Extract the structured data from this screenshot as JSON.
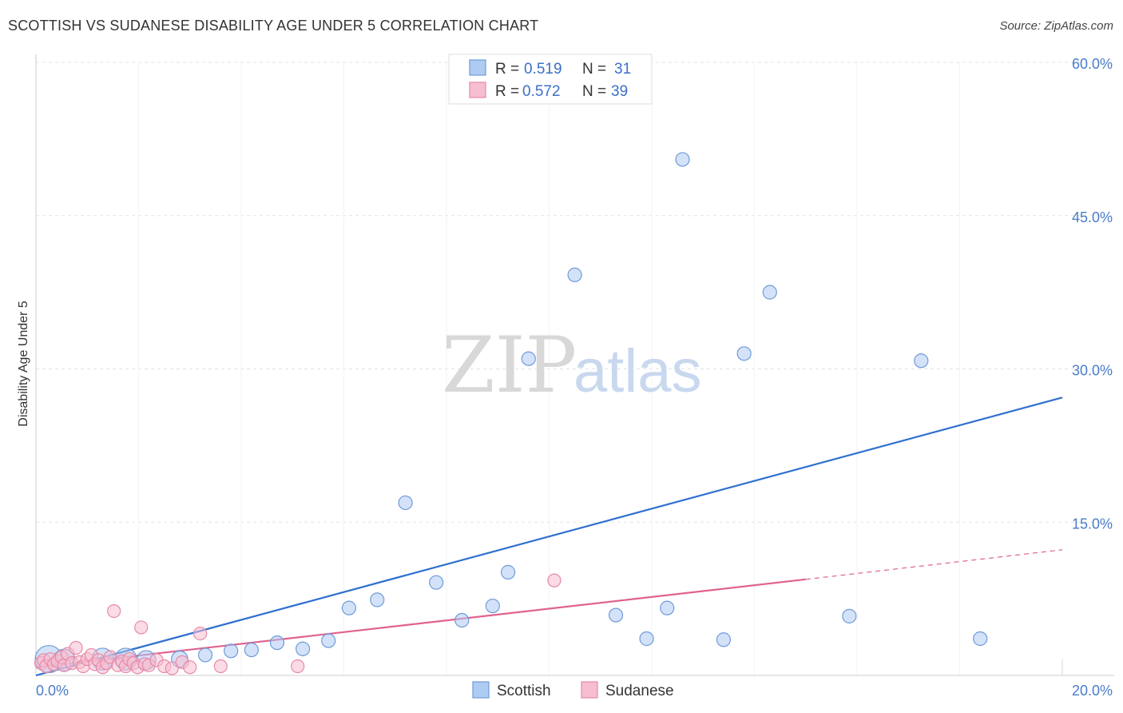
{
  "header": {
    "title": "SCOTTISH VS SUDANESE DISABILITY AGE UNDER 5 CORRELATION CHART",
    "source": "Source: ZipAtlas.com"
  },
  "watermark": {
    "zip": "ZIP",
    "atlas": "atlas"
  },
  "legend": {
    "rows": [
      {
        "r_label": "R =",
        "r_value": "0.519",
        "n_label": "N =",
        "n_value": "31"
      },
      {
        "r_label": "R =",
        "r_value": "0.572",
        "n_label": "N =",
        "n_value": "39"
      }
    ]
  },
  "colors": {
    "scottish_fill": "#aecbf2",
    "scottish_stroke": "#6f9bd8",
    "scottish_line": "#2f6fcf",
    "sudanese_fill": "#f7bdd0",
    "sudanese_stroke": "#e68aa8",
    "sudanese_line": "#e0628f",
    "grid": "#e3e3e3",
    "tick_text": "#4a7cc9"
  },
  "chart_data": {
    "type": "scatter",
    "title": "SCOTTISH VS SUDANESE DISABILITY AGE UNDER 5 CORRELATION CHART",
    "xlabel": "",
    "ylabel": "Disability Age Under 5",
    "xlim": [
      0,
      20
    ],
    "ylim": [
      0,
      60
    ],
    "x_tick_labels": [
      "0.0%",
      "20.0%"
    ],
    "y_ticks": [
      15,
      30,
      45,
      60
    ],
    "y_tick_labels": [
      "15.0%",
      "30.0%",
      "45.0%",
      "60.0%"
    ],
    "grid": true,
    "legend_position": "top-center",
    "series": [
      {
        "name": "Scottish",
        "r": 0.519,
        "n": 31,
        "points": [
          [
            0.25,
            1.6,
            2.0
          ],
          [
            0.55,
            1.5,
            1.6
          ],
          [
            1.3,
            1.6,
            1.6
          ],
          [
            1.75,
            1.6,
            1.6
          ],
          [
            2.15,
            1.5,
            1.4
          ],
          [
            2.8,
            1.6,
            1.2
          ],
          [
            3.3,
            2.0,
            1.0
          ],
          [
            3.8,
            2.4,
            1.0
          ],
          [
            4.2,
            2.5,
            1.0
          ],
          [
            4.7,
            3.2,
            1.0
          ],
          [
            5.2,
            2.6,
            1.0
          ],
          [
            5.7,
            3.4,
            1.0
          ],
          [
            6.1,
            6.6,
            1.0
          ],
          [
            6.65,
            7.4,
            1.0
          ],
          [
            7.2,
            16.9,
            1.0
          ],
          [
            7.8,
            9.1,
            1.0
          ],
          [
            8.3,
            5.4,
            1.0
          ],
          [
            8.9,
            6.8,
            1.0
          ],
          [
            9.2,
            10.1,
            1.0
          ],
          [
            9.6,
            31.0,
            1.0
          ],
          [
            10.5,
            39.2,
            1.0
          ],
          [
            11.3,
            5.9,
            1.0
          ],
          [
            11.9,
            3.6,
            1.0
          ],
          [
            12.3,
            6.6,
            1.0
          ],
          [
            12.6,
            50.5,
            1.0
          ],
          [
            13.4,
            3.5,
            1.0
          ],
          [
            13.8,
            31.5,
            1.0
          ],
          [
            14.3,
            37.5,
            1.0
          ],
          [
            15.85,
            5.8,
            1.0
          ],
          [
            17.25,
            30.8,
            1.0
          ],
          [
            18.4,
            3.6,
            1.0
          ]
        ],
        "trend": {
          "x0": 0.0,
          "y0": 0.0,
          "x1": 20.0,
          "y1": 27.2
        }
      },
      {
        "name": "Sudanese",
        "r": 0.572,
        "n": 39,
        "points": [
          [
            0.1,
            1.2
          ],
          [
            0.15,
            1.5
          ],
          [
            0.2,
            0.9
          ],
          [
            0.28,
            1.6
          ],
          [
            0.35,
            1.1
          ],
          [
            0.42,
            1.4
          ],
          [
            0.5,
            1.8
          ],
          [
            0.55,
            1.0
          ],
          [
            0.62,
            2.1
          ],
          [
            0.7,
            1.2
          ],
          [
            0.78,
            2.7
          ],
          [
            0.85,
            1.3
          ],
          [
            0.92,
            0.9
          ],
          [
            1.0,
            1.6
          ],
          [
            1.08,
            2.0
          ],
          [
            1.15,
            1.1
          ],
          [
            1.22,
            1.5
          ],
          [
            1.3,
            0.8
          ],
          [
            1.38,
            1.2
          ],
          [
            1.45,
            1.8
          ],
          [
            1.52,
            6.3
          ],
          [
            1.6,
            1.0
          ],
          [
            1.68,
            1.4
          ],
          [
            1.75,
            0.9
          ],
          [
            1.82,
            1.6
          ],
          [
            1.9,
            1.2
          ],
          [
            1.98,
            0.8
          ],
          [
            2.05,
            4.7
          ],
          [
            2.12,
            1.1
          ],
          [
            2.2,
            1.0
          ],
          [
            2.35,
            1.5
          ],
          [
            2.5,
            0.9
          ],
          [
            2.65,
            0.7
          ],
          [
            2.85,
            1.3
          ],
          [
            3.0,
            0.8
          ],
          [
            3.2,
            4.1
          ],
          [
            3.6,
            0.9
          ],
          [
            5.1,
            0.9
          ],
          [
            10.1,
            9.3
          ]
        ],
        "trend": {
          "x0": 0.0,
          "y0": 0.8,
          "x1": 15.0,
          "y1": 9.4
        },
        "trend_extension": {
          "x0": 15.0,
          "y0": 9.4,
          "x1": 20.0,
          "y1": 12.3
        }
      }
    ]
  }
}
